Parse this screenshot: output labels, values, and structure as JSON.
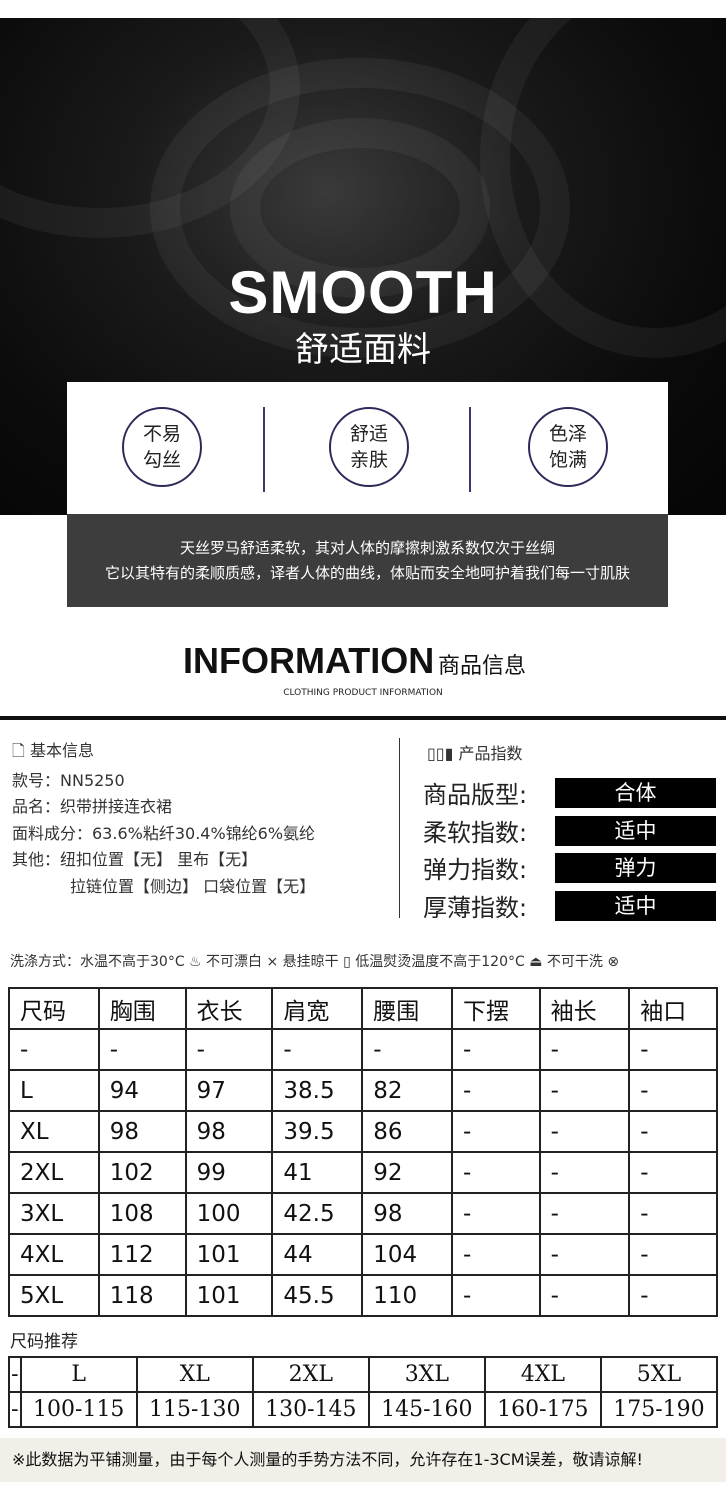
{
  "hero": {
    "title": "SMOOTH",
    "subtitle": "舒适面料"
  },
  "features": [
    "不易\n勾丝",
    "舒适\n亲肤",
    "色泽\n饱满"
  ],
  "description": [
    "天丝罗马舒适柔软，其对人体的摩擦刺激系数仅次于丝绸",
    "它以其特有的柔顺质感，译者人体的曲线，体贴而安全地呵护着我们每一寸肌肤"
  ],
  "information": {
    "title": "INFORMATION",
    "title_cn": "商品信息",
    "subtitle": "CLOTHING PRODUCT INFORMATION"
  },
  "basic": {
    "heading": "基本信息",
    "icon": "document-icon",
    "lines": [
      "款号：NN5250",
      "品名：织带拼接连衣裙",
      "面料成分：63.6%粘纤30.4%锦纶6%氨纶",
      "其他：纽扣位置【无】 里布【无】",
      "拉链位置【侧边】 口袋位置【无】"
    ]
  },
  "indices": {
    "heading": "产品指数",
    "icon": "bar-chart-icon",
    "rows": [
      {
        "label": "商品版型:",
        "value": "合体"
      },
      {
        "label": "柔软指数:",
        "value": "适中"
      },
      {
        "label": "弹力指数:",
        "value": "弹力"
      },
      {
        "label": "厚薄指数:",
        "value": "适中"
      }
    ]
  },
  "wash": "洗涤方式：水温不高于30°C ♨  不可漂白 ⨯  悬挂晾干 ▯  低温熨烫温度不高于120°C ⏏  不可干洗 ⊗",
  "size_table": {
    "headers": [
      "尺码",
      "胸围",
      "衣长",
      "肩宽",
      "腰围",
      "下摆",
      "袖长",
      "袖口"
    ],
    "rows": [
      [
        "-",
        "-",
        "-",
        "-",
        "-",
        "-",
        "-",
        "-"
      ],
      [
        "L",
        "94",
        "97",
        "38.5",
        "82",
        "-",
        "-",
        "-"
      ],
      [
        "XL",
        "98",
        "98",
        "39.5",
        "86",
        "-",
        "-",
        "-"
      ],
      [
        "2XL",
        "102",
        "99",
        "41",
        "92",
        "-",
        "-",
        "-"
      ],
      [
        "3XL",
        "108",
        "100",
        "42.5",
        "98",
        "-",
        "-",
        "-"
      ],
      [
        "4XL",
        "112",
        "101",
        "44",
        "104",
        "-",
        "-",
        "-"
      ],
      [
        "5XL",
        "118",
        "101",
        "45.5",
        "110",
        "-",
        "-",
        "-"
      ]
    ]
  },
  "recommend": {
    "title": "尺码推荐",
    "sizes": [
      "-",
      "L",
      "XL",
      "2XL",
      "3XL",
      "4XL",
      "5XL"
    ],
    "ranges": [
      "-",
      "100-115",
      "115-130",
      "130-145",
      "145-160",
      "160-175",
      "175-190"
    ]
  },
  "footer": "※此数据为平铺测量，由于每个人测量的手势方法不同，允许存在1-3CM误差，敬请谅解!"
}
